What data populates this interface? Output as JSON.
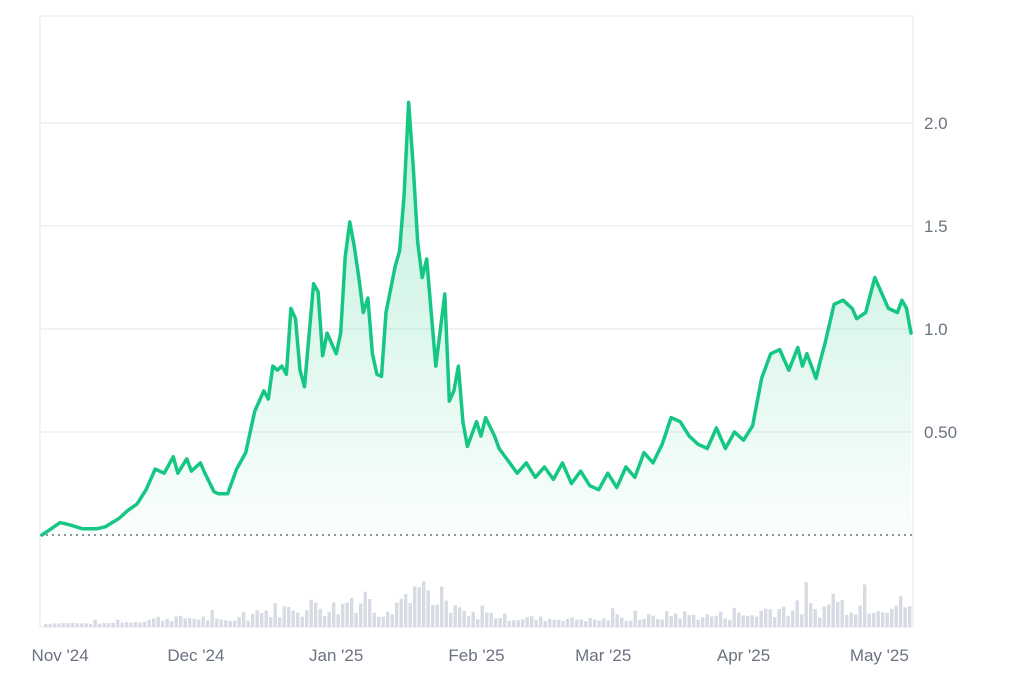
{
  "chart_data": {
    "type": "area",
    "title": "",
    "xlabel": "",
    "ylabel": "",
    "x_start": "2024-10-28",
    "x_end": "2025-05-08",
    "ylim": [
      0,
      2.5
    ],
    "y_ticks": [
      {
        "value": 0.5,
        "label": "0.50"
      },
      {
        "value": 1.0,
        "label": "1.0"
      },
      {
        "value": 1.5,
        "label": "1.5"
      },
      {
        "value": 2.0,
        "label": "2.0"
      }
    ],
    "x_ticks": [
      {
        "date": "2024-11-01",
        "label": "Nov '24"
      },
      {
        "date": "2024-12-01",
        "label": "Dec '24"
      },
      {
        "date": "2025-01-01",
        "label": "Jan '25"
      },
      {
        "date": "2025-02-01",
        "label": "Feb '25"
      },
      {
        "date": "2025-03-01",
        "label": "Mar '25"
      },
      {
        "date": "2025-04-01",
        "label": "Apr '25"
      },
      {
        "date": "2025-05-01",
        "label": "May '25"
      }
    ],
    "grid": true,
    "baseline_dotted": 0,
    "colors": {
      "line": "#16c784",
      "area_top": "#16c784",
      "grid": "#e5e7eb",
      "volume": "#d7dbe3",
      "baseline": "#6b7280"
    },
    "series": [
      {
        "x": [
          "2024-10-28",
          "2024-10-30",
          "2024-11-01",
          "2024-11-03",
          "2024-11-06",
          "2024-11-09",
          "2024-11-11",
          "2024-11-14",
          "2024-11-16",
          "2024-11-18",
          "2024-11-20",
          "2024-11-22",
          "2024-11-24",
          "2024-11-26",
          "2024-11-27",
          "2024-11-29",
          "2024-11-30",
          "2024-12-02",
          "2024-12-03",
          "2024-12-05",
          "2024-12-06",
          "2024-12-08",
          "2024-12-10",
          "2024-12-12",
          "2024-12-14",
          "2024-12-16",
          "2024-12-17",
          "2024-12-18",
          "2024-12-19",
          "2024-12-20",
          "2024-12-21",
          "2024-12-22",
          "2024-12-23",
          "2024-12-24",
          "2024-12-25",
          "2024-12-27",
          "2024-12-28",
          "2024-12-29",
          "2024-12-30",
          "2025-01-01",
          "2025-01-02",
          "2025-01-03",
          "2025-01-04",
          "2025-01-05",
          "2025-01-06",
          "2025-01-07",
          "2025-01-08",
          "2025-01-09",
          "2025-01-10",
          "2025-01-11",
          "2025-01-12",
          "2025-01-14",
          "2025-01-15",
          "2025-01-16",
          "2025-01-17",
          "2025-01-18",
          "2025-01-19",
          "2025-01-20",
          "2025-01-21",
          "2025-01-22",
          "2025-01-23",
          "2025-01-25",
          "2025-01-26",
          "2025-01-27",
          "2025-01-28",
          "2025-01-29",
          "2025-01-30",
          "2025-02-01",
          "2025-02-02",
          "2025-02-03",
          "2025-02-05",
          "2025-02-06",
          "2025-02-08",
          "2025-02-10",
          "2025-02-12",
          "2025-02-14",
          "2025-02-16",
          "2025-02-18",
          "2025-02-20",
          "2025-02-22",
          "2025-02-24",
          "2025-02-26",
          "2025-02-28",
          "2025-03-02",
          "2025-03-04",
          "2025-03-06",
          "2025-03-08",
          "2025-03-10",
          "2025-03-12",
          "2025-03-14",
          "2025-03-16",
          "2025-03-18",
          "2025-03-20",
          "2025-03-22",
          "2025-03-24",
          "2025-03-26",
          "2025-03-28",
          "2025-03-30",
          "2025-04-01",
          "2025-04-03",
          "2025-04-05",
          "2025-04-07",
          "2025-04-09",
          "2025-04-11",
          "2025-04-13",
          "2025-04-14",
          "2025-04-15",
          "2025-04-17",
          "2025-04-18",
          "2025-04-19",
          "2025-04-21",
          "2025-04-23",
          "2025-04-25",
          "2025-04-26",
          "2025-04-28",
          "2025-04-30",
          "2025-05-01",
          "2025-05-03",
          "2025-05-05",
          "2025-05-06",
          "2025-05-07",
          "2025-05-08"
        ],
        "y": [
          0.0,
          0.03,
          0.06,
          0.05,
          0.03,
          0.03,
          0.04,
          0.08,
          0.12,
          0.15,
          0.22,
          0.32,
          0.3,
          0.38,
          0.3,
          0.37,
          0.31,
          0.35,
          0.3,
          0.21,
          0.2,
          0.2,
          0.32,
          0.4,
          0.6,
          0.7,
          0.66,
          0.82,
          0.8,
          0.82,
          0.78,
          1.1,
          1.05,
          0.8,
          0.72,
          1.22,
          1.18,
          0.87,
          0.98,
          0.88,
          0.98,
          1.35,
          1.52,
          1.4,
          1.25,
          1.08,
          1.15,
          0.88,
          0.78,
          0.77,
          1.08,
          1.3,
          1.38,
          1.65,
          2.1,
          1.8,
          1.42,
          1.25,
          1.34,
          1.08,
          0.82,
          1.17,
          0.65,
          0.7,
          0.82,
          0.55,
          0.43,
          0.55,
          0.48,
          0.57,
          0.48,
          0.42,
          0.36,
          0.3,
          0.35,
          0.28,
          0.33,
          0.27,
          0.35,
          0.25,
          0.31,
          0.24,
          0.22,
          0.3,
          0.23,
          0.33,
          0.28,
          0.4,
          0.35,
          0.44,
          0.57,
          0.55,
          0.48,
          0.44,
          0.42,
          0.52,
          0.42,
          0.5,
          0.46,
          0.53,
          0.76,
          0.88,
          0.9,
          0.8,
          0.91,
          0.82,
          0.88,
          0.76,
          0.85,
          0.93,
          1.12,
          1.14,
          1.1,
          1.05,
          1.08,
          1.25,
          1.2,
          1.1,
          1.08,
          1.14,
          1.1,
          0.98
        ]
      }
    ]
  }
}
